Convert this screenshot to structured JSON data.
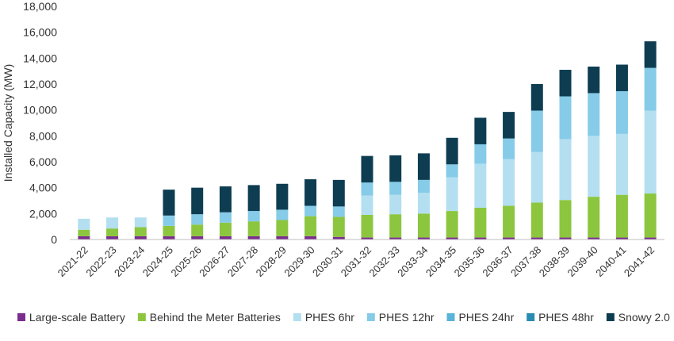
{
  "chart_data": {
    "type": "bar",
    "stacked": true,
    "title": "",
    "xlabel": "",
    "ylabel": "Installed Capacity (MW)",
    "ylim": [
      0,
      18000
    ],
    "yticks": [
      0,
      2000,
      4000,
      6000,
      8000,
      10000,
      12000,
      14000,
      16000,
      18000
    ],
    "yticklabels": [
      "0",
      "2,000",
      "4,000",
      "6,000",
      "8,000",
      "10,000",
      "12,000",
      "14,000",
      "16,000",
      "18,000"
    ],
    "grid": false,
    "legend_position": "bottom",
    "categories": [
      "2021-22",
      "2022-23",
      "2023-24",
      "2024-25",
      "2025-26",
      "2026-27",
      "2027-28",
      "2028-29",
      "2029-30",
      "2030-31",
      "2031-32",
      "2032-33",
      "2033-34",
      "2034-35",
      "2035-36",
      "2036-37",
      "2037-38",
      "2038-39",
      "2039-40",
      "2040-41",
      "2041-42"
    ],
    "series": [
      {
        "name": "Large-scale Battery",
        "color": "#7b2d8e",
        "values": [
          250,
          250,
          250,
          250,
          250,
          250,
          250,
          250,
          250,
          200,
          150,
          150,
          150,
          150,
          150,
          150,
          150,
          150,
          150,
          150,
          150
        ]
      },
      {
        "name": "Behind the Meter Batteries",
        "color": "#8cc63f",
        "values": [
          500,
          600,
          700,
          800,
          900,
          1050,
          1150,
          1250,
          1550,
          1550,
          1750,
          1800,
          1850,
          2050,
          2300,
          2450,
          2700,
          2900,
          3150,
          3300,
          3400
        ]
      },
      {
        "name": "PHES 6hr",
        "color": "#b3dff0",
        "values": [
          850,
          850,
          750,
          0,
          0,
          0,
          0,
          0,
          0,
          0,
          1500,
          1500,
          1600,
          2600,
          3400,
          3600,
          3900,
          4700,
          4700,
          4700,
          6400
        ]
      },
      {
        "name": "PHES 12hr",
        "color": "#86cbe8",
        "values": [
          0,
          0,
          0,
          800,
          800,
          800,
          800,
          800,
          800,
          800,
          1000,
          1000,
          1000,
          1000,
          1500,
          1600,
          3200,
          3300,
          3300,
          3300,
          3300
        ]
      },
      {
        "name": "PHES 24hr",
        "color": "#5ab4d8",
        "values": [
          0,
          0,
          0,
          0,
          0,
          0,
          0,
          0,
          0,
          0,
          0,
          0,
          0,
          0,
          0,
          0,
          0,
          0,
          0,
          0,
          0
        ]
      },
      {
        "name": "PHES 48hr",
        "color": "#2a8cb0",
        "values": [
          0,
          0,
          0,
          0,
          0,
          0,
          0,
          0,
          0,
          0,
          0,
          0,
          0,
          0,
          0,
          0,
          0,
          0,
          0,
          0,
          0
        ]
      },
      {
        "name": "Snowy 2.0",
        "color": "#0e3d52",
        "values": [
          0,
          0,
          0,
          2000,
          2050,
          2000,
          2000,
          2000,
          2050,
          2050,
          2050,
          2050,
          2050,
          2050,
          2050,
          2050,
          2050,
          2050,
          2050,
          2050,
          2050
        ]
      }
    ]
  }
}
